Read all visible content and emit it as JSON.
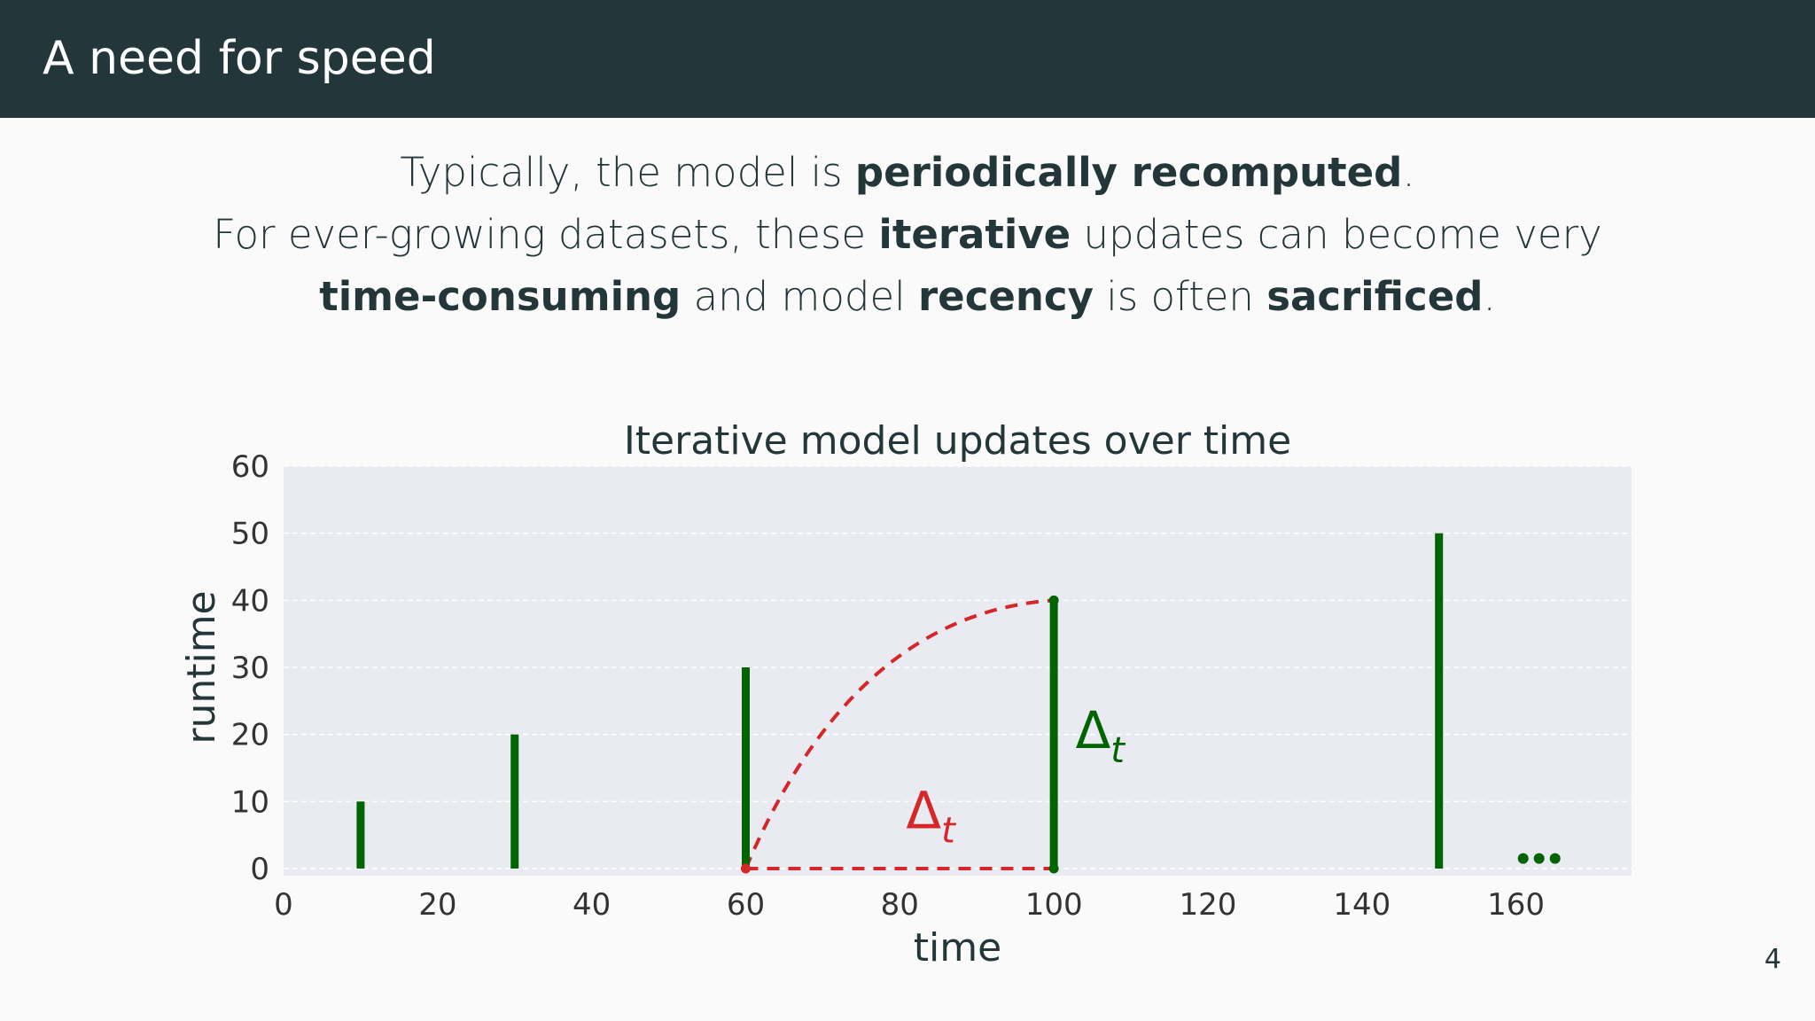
{
  "header": {
    "title": "A need for speed"
  },
  "intro": {
    "line1": {
      "pre": "Typically, the model is ",
      "b1": "periodically recomputed",
      "post": "."
    },
    "line2": {
      "pre": "For ever-growing datasets, these ",
      "b1": "iterative",
      "post": " updates can become very"
    },
    "line3": {
      "b1": "time-consuming",
      "mid1": " and model ",
      "b2": "recency",
      "mid2": " is often ",
      "b3": "sacrificed",
      "post": "."
    }
  },
  "chart_data": {
    "type": "bar",
    "title": "Iterative model updates over time",
    "xlabel": "time",
    "ylabel": "runtime",
    "xlim": [
      0,
      175
    ],
    "ylim": [
      0,
      60
    ],
    "xticks": [
      0,
      20,
      40,
      60,
      80,
      100,
      120,
      140,
      160
    ],
    "yticks": [
      0,
      10,
      20,
      30,
      40,
      50,
      60
    ],
    "grid": true,
    "colors": {
      "bars": "#006400",
      "annotation": "#d62728",
      "plot_bg": "#eaeaf2"
    },
    "bars": [
      {
        "x": 10,
        "y": 10
      },
      {
        "x": 30,
        "y": 20
      },
      {
        "x": 60,
        "y": 30
      },
      {
        "x": 100,
        "y": 40
      },
      {
        "x": 150,
        "y": 50
      }
    ],
    "annotations": {
      "curve": {
        "from": [
          60,
          0
        ],
        "to": [
          100,
          40
        ]
      },
      "baseline": {
        "from": [
          60,
          0
        ],
        "to": [
          100,
          0
        ]
      },
      "delta_red": {
        "label": "Δ",
        "sub": "t",
        "x": 84,
        "y": 6
      },
      "delta_green": {
        "label": "Δ",
        "sub": "t",
        "x": 106,
        "y": 18
      },
      "ellipsis": {
        "x": 163,
        "y": 1.5
      }
    }
  },
  "page_number": "4"
}
